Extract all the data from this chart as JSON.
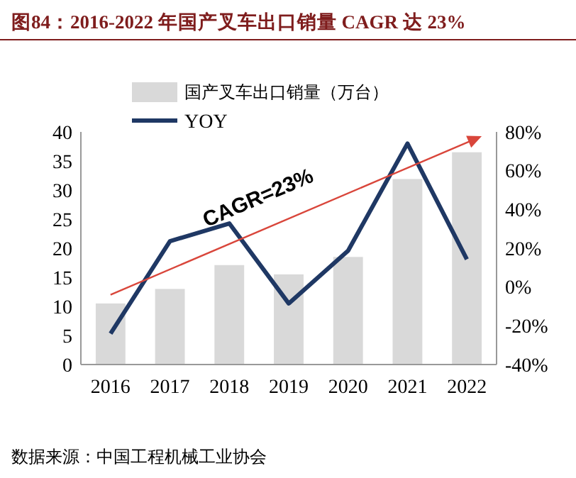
{
  "chart_data": {
    "type": "bar",
    "title": "图84：2016-2022 年国产叉车出口销量 CAGR 达 23%",
    "categories": [
      "2016",
      "2017",
      "2018",
      "2019",
      "2020",
      "2021",
      "2022"
    ],
    "series": [
      {
        "name": "国产叉车出口销量（万台）",
        "color": "#d9d9d9",
        "values": [
          10.5,
          13.0,
          17.1,
          15.5,
          18.5,
          31.9,
          36.5
        ]
      },
      {
        "name": "YOY",
        "type": "line",
        "axis": "y2",
        "color": "#1f3864",
        "values": [
          -24,
          23.6,
          32.8,
          -8.5,
          18.7,
          74,
          14.3
        ]
      }
    ],
    "ylim": [
      0,
      40
    ],
    "yticks": [
      0,
      5,
      10,
      15,
      20,
      25,
      30,
      35,
      40
    ],
    "y2lim": [
      -40,
      80
    ],
    "y2ticks": [
      {
        "value": -40,
        "label": "-40%"
      },
      {
        "value": -20,
        "label": "-20%"
      },
      {
        "value": 0,
        "label": "0%"
      },
      {
        "value": 20,
        "label": "20%"
      },
      {
        "value": 40,
        "label": "40%"
      },
      {
        "value": 60,
        "label": "60%"
      },
      {
        "value": 80,
        "label": "80%"
      }
    ],
    "legend": "top left",
    "grid": false,
    "marker": "none",
    "line_style": "solid",
    "annotations": [
      "CAGR=23%",
      "数据来源：中国工程机械工业协会"
    ]
  }
}
